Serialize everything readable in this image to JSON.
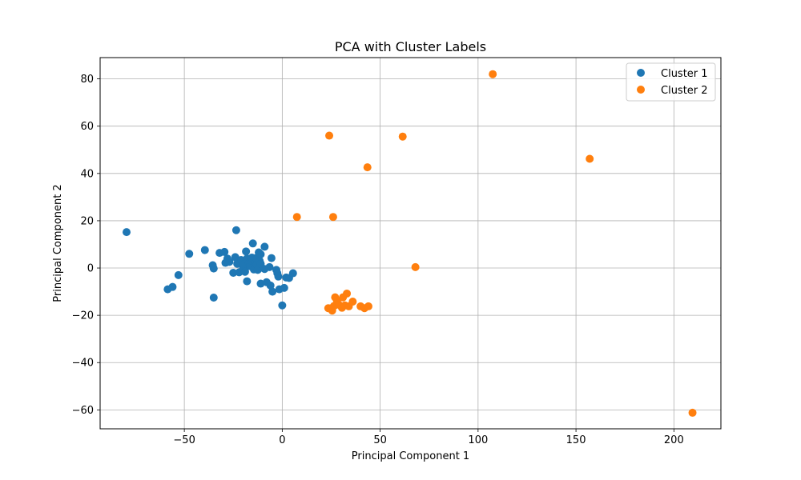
{
  "chart_data": {
    "type": "scatter",
    "title": "PCA with Cluster Labels",
    "xlabel": "Principal Component 1",
    "ylabel": "Principal Component 2",
    "xlim": [
      -93,
      224
    ],
    "ylim": [
      -68,
      89
    ],
    "xticks": [
      -50,
      0,
      50,
      100,
      150,
      200
    ],
    "yticks": [
      -60,
      -40,
      -20,
      0,
      20,
      40,
      60,
      80
    ],
    "xtick_labels": [
      "−50",
      "0",
      "50",
      "100",
      "150",
      "200"
    ],
    "ytick_labels": [
      "−60",
      "−40",
      "−20",
      "0",
      "20",
      "40",
      "60",
      "80"
    ],
    "grid": true,
    "legend": "top-right",
    "series": [
      {
        "name": "Cluster 1",
        "color": "#1f77b4",
        "points": [
          [
            -79.5,
            15.2
          ],
          [
            -58.5,
            -9.0
          ],
          [
            -56,
            -8.0
          ],
          [
            -53,
            -3.0
          ],
          [
            -47.5,
            6.0
          ],
          [
            -39.5,
            7.6
          ],
          [
            -35.5,
            1.2
          ],
          [
            -35,
            -0.2
          ],
          [
            -35,
            -12.5
          ],
          [
            -32,
            6.4
          ],
          [
            -29.5,
            6.8
          ],
          [
            -29,
            2.2
          ],
          [
            -28,
            4.0
          ],
          [
            -27,
            2.6
          ],
          [
            -25,
            -2.0
          ],
          [
            -24,
            4.6
          ],
          [
            -23.5,
            16.0
          ],
          [
            -23,
            1.8
          ],
          [
            -22.5,
            2.8
          ],
          [
            -22,
            -1.8
          ],
          [
            -21,
            3.4
          ],
          [
            -20.5,
            -1.2
          ],
          [
            -20,
            0.4
          ],
          [
            -19.5,
            1.6
          ],
          [
            -19,
            -1.6
          ],
          [
            -18.5,
            7.0
          ],
          [
            -18,
            4.0
          ],
          [
            -18,
            -5.6
          ],
          [
            -17,
            2.0
          ],
          [
            -16.5,
            0.8
          ],
          [
            -16,
            3.2
          ],
          [
            -15.5,
            4.4
          ],
          [
            -15,
            10.4
          ],
          [
            -14.5,
            -0.6
          ],
          [
            -14,
            2.6
          ],
          [
            -13.5,
            4.2
          ],
          [
            -13,
            1.4
          ],
          [
            -12.5,
            -0.8
          ],
          [
            -12,
            6.6
          ],
          [
            -11.5,
            3.0
          ],
          [
            -11,
            5.8
          ],
          [
            -11,
            1.8
          ],
          [
            -11,
            -6.6
          ],
          [
            -9,
            9.0
          ],
          [
            -9,
            -0.4
          ],
          [
            -8,
            -6.0
          ],
          [
            -6.5,
            0.4
          ],
          [
            -6,
            -7.4
          ],
          [
            -5.5,
            4.2
          ],
          [
            -5,
            -10.0
          ],
          [
            -3,
            -0.8
          ],
          [
            -2.5,
            -2.2
          ],
          [
            -2,
            -3.6
          ],
          [
            -1.5,
            -9.0
          ],
          [
            0,
            -15.8
          ],
          [
            1,
            -8.4
          ],
          [
            2,
            -4.0
          ],
          [
            3.5,
            -4.2
          ],
          [
            5.5,
            -2.2
          ]
        ]
      },
      {
        "name": "Cluster 2",
        "color": "#ff7f0e",
        "points": [
          [
            7.5,
            21.6
          ],
          [
            23.5,
            -17.0
          ],
          [
            24,
            56.0
          ],
          [
            25,
            -17.0
          ],
          [
            25.5,
            -18.0
          ],
          [
            26,
            21.6
          ],
          [
            26.5,
            -16.0
          ],
          [
            27,
            -12.4
          ],
          [
            28,
            -14.0
          ],
          [
            29,
            -15.6
          ],
          [
            30.5,
            -16.8
          ],
          [
            31,
            -12.4
          ],
          [
            32,
            -15.8
          ],
          [
            33,
            -10.8
          ],
          [
            34,
            -16.2
          ],
          [
            36,
            -14.2
          ],
          [
            40,
            -16.2
          ],
          [
            42,
            -17.0
          ],
          [
            43.5,
            42.6
          ],
          [
            44,
            -16.2
          ],
          [
            61.5,
            55.6
          ],
          [
            68,
            0.4
          ],
          [
            107.5,
            82.0
          ],
          [
            157,
            46.2
          ],
          [
            209.5,
            -61.2
          ]
        ]
      }
    ]
  }
}
